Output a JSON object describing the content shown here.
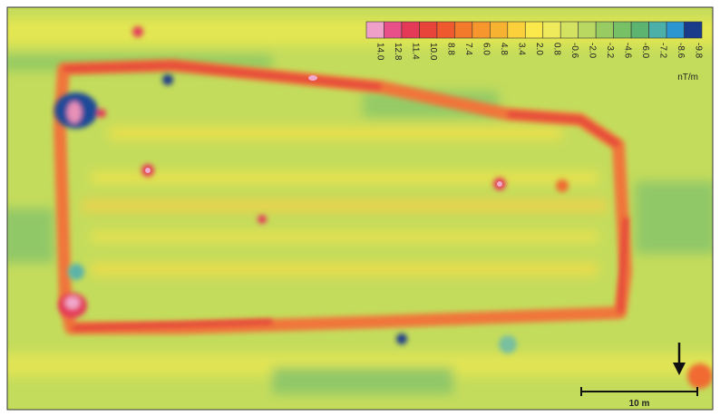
{
  "legend": {
    "labels": [
      "14.0",
      "12.8",
      "11.4",
      "10.0",
      "8.8",
      "7.4",
      "6.0",
      "4.8",
      "3.4",
      "2.0",
      "0.8",
      "-0.6",
      "-2.0",
      "-3.2",
      "-4.6",
      "-6.0",
      "-7.2",
      "-8.6",
      "-9.8"
    ],
    "colors": [
      "#eea0c8",
      "#e8508a",
      "#e43a58",
      "#e8443a",
      "#ee5a2e",
      "#f27a2a",
      "#f6962c",
      "#f8b232",
      "#fbd03a",
      "#fbe84a",
      "#eeea5c",
      "#d4e262",
      "#b8d862",
      "#98cc62",
      "#78c066",
      "#5cb470",
      "#4cb0a8",
      "#2c96d0",
      "#1a3a8a"
    ],
    "unit": "nT/m"
  },
  "scale_bar": {
    "label": "10 m"
  }
}
